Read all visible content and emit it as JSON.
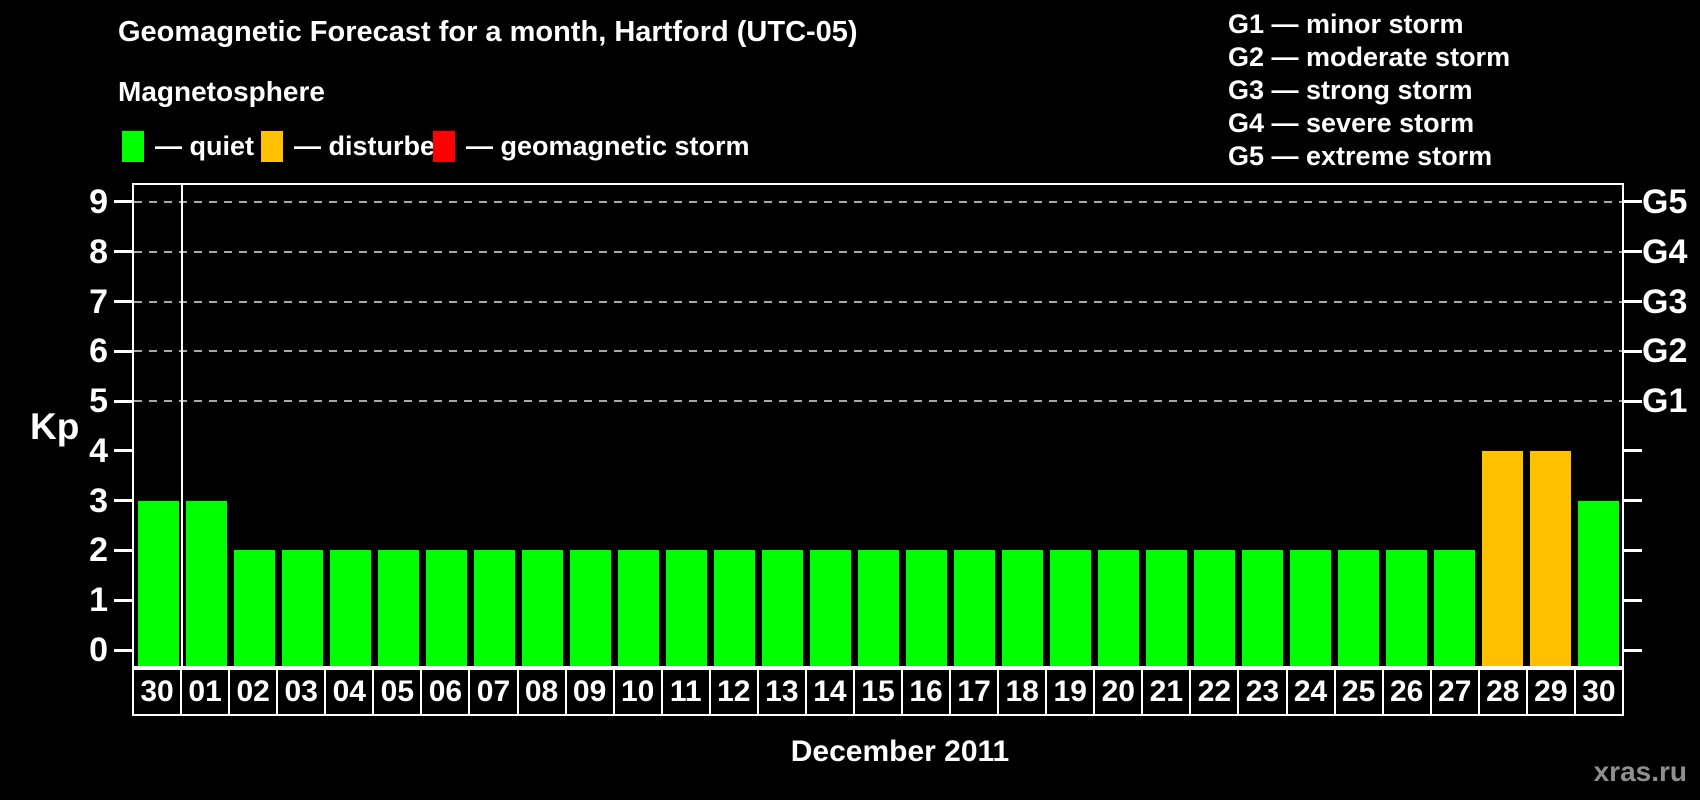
{
  "title": "Geomagnetic Forecast for a month, Hartford (UTC-05)",
  "watermark": "xras.ru",
  "legend": {
    "heading": "Magnetosphere",
    "items": [
      {
        "name": "quiet",
        "label": "— quiet",
        "color": "#00ff00"
      },
      {
        "name": "disturbed",
        "label": "— disturbed",
        "color": "#ffc000"
      },
      {
        "name": "geomagnetic-storm",
        "label": "— geomagnetic storm",
        "color": "#ff0000"
      }
    ]
  },
  "storm_scale_legend": [
    "G1 — minor storm",
    "G2 — moderate storm",
    "G3 — strong storm",
    "G4 — severe storm",
    "G5 — extreme storm"
  ],
  "chart_data": {
    "type": "bar",
    "title": "Geomagnetic Forecast for a month, Hartford (UTC-05)",
    "xlabel": "December 2011",
    "ylabel": "Kp",
    "ylim": [
      0,
      9
    ],
    "yticks": [
      0,
      1,
      2,
      3,
      4,
      5,
      6,
      7,
      8,
      9
    ],
    "gridlines_at": [
      5,
      6,
      7,
      8,
      9
    ],
    "grid": true,
    "right_axis_labels": [
      {
        "label": "G1",
        "kp": 5
      },
      {
        "label": "G2",
        "kp": 6
      },
      {
        "label": "G3",
        "kp": 7
      },
      {
        "label": "G4",
        "kp": 8
      },
      {
        "label": "G5",
        "kp": 9
      }
    ],
    "categories": [
      "30",
      "01",
      "02",
      "03",
      "04",
      "05",
      "06",
      "07",
      "08",
      "09",
      "10",
      "11",
      "12",
      "13",
      "14",
      "15",
      "16",
      "17",
      "18",
      "19",
      "20",
      "21",
      "22",
      "23",
      "24",
      "25",
      "26",
      "27",
      "28",
      "29",
      "30"
    ],
    "values": [
      3,
      3,
      2,
      2,
      2,
      2,
      2,
      2,
      2,
      2,
      2,
      2,
      2,
      2,
      2,
      2,
      2,
      2,
      2,
      2,
      2,
      2,
      2,
      2,
      2,
      2,
      2,
      2,
      4,
      4,
      3
    ],
    "statuses": [
      "quiet",
      "quiet",
      "quiet",
      "quiet",
      "quiet",
      "quiet",
      "quiet",
      "quiet",
      "quiet",
      "quiet",
      "quiet",
      "quiet",
      "quiet",
      "quiet",
      "quiet",
      "quiet",
      "quiet",
      "quiet",
      "quiet",
      "quiet",
      "quiet",
      "quiet",
      "quiet",
      "quiet",
      "quiet",
      "quiet",
      "quiet",
      "quiet",
      "disturbed",
      "disturbed",
      "quiet"
    ],
    "status_colors": {
      "quiet": "#00ff00",
      "disturbed": "#ffc000",
      "geomagnetic-storm": "#ff0000"
    },
    "month_separator_after_index": 0,
    "axis_color": "#ffffff",
    "gridline_color": "#a8a8a8",
    "background": "#000000"
  }
}
